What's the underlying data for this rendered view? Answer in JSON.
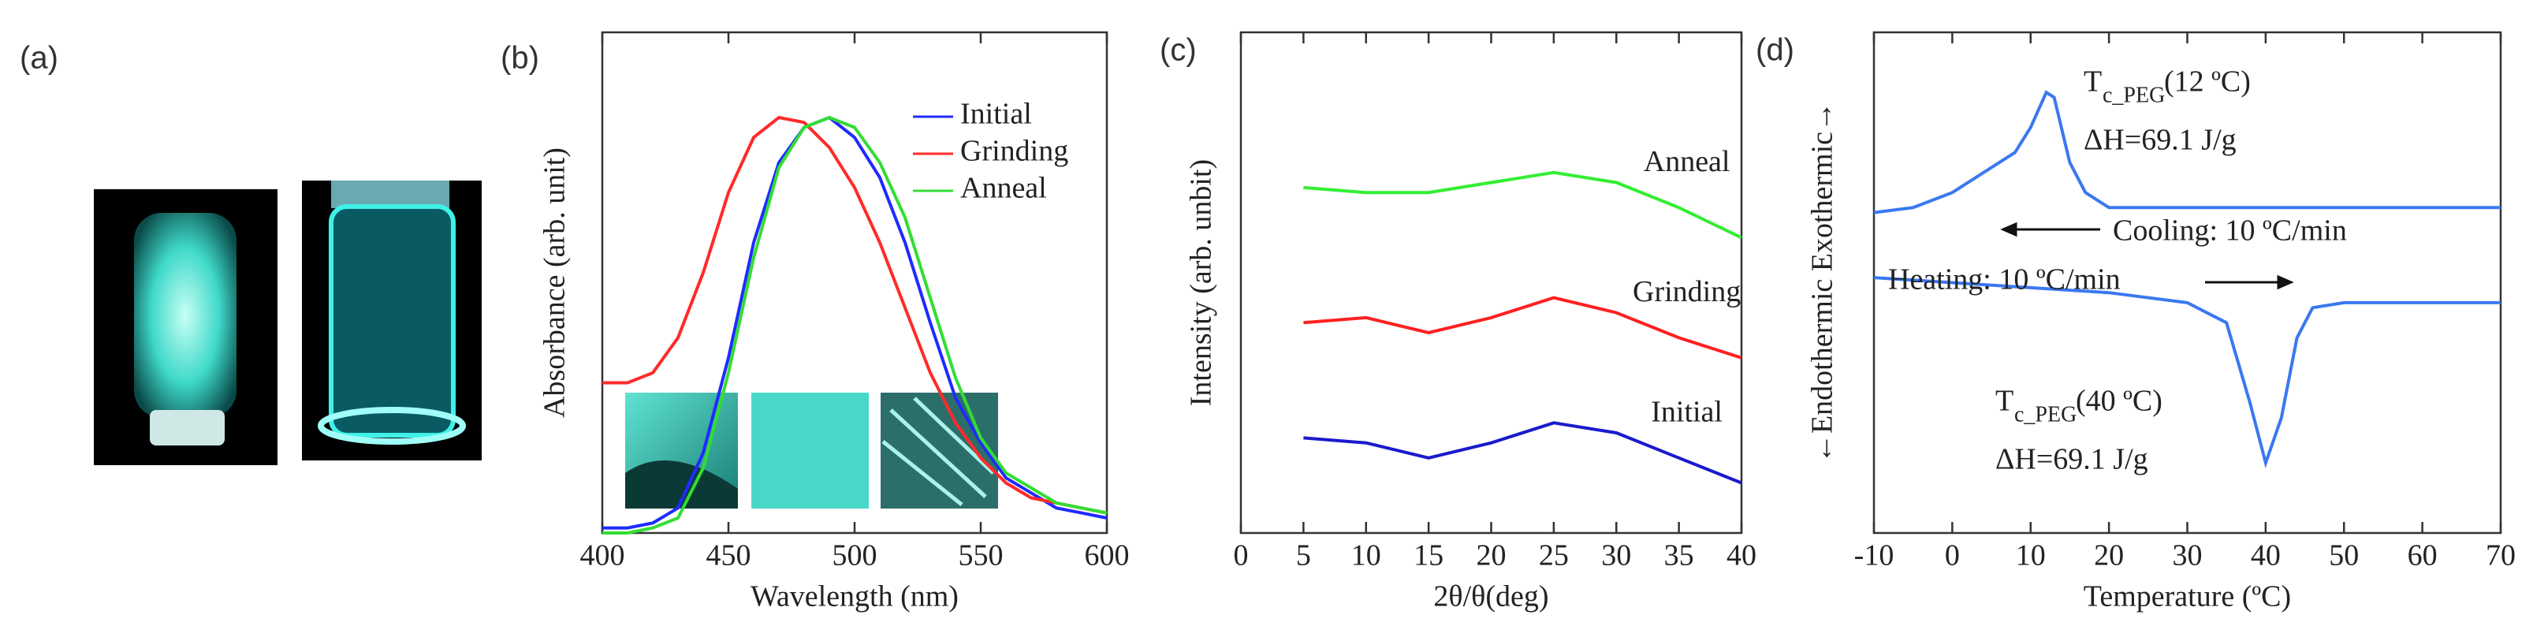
{
  "photo_panel": {
    "label": "(a)"
  },
  "chart_data": [
    {
      "type": "line",
      "label": "(b)",
      "xlabel": "Wavelength (nm)",
      "ylabel": "Absorbance (arb. unit)",
      "xlim": [
        400,
        600
      ],
      "xticks": [
        400,
        450,
        500,
        550,
        600
      ],
      "ylim": [
        0,
        1
      ],
      "legend": "upper right",
      "x": [
        400,
        410,
        420,
        430,
        440,
        450,
        460,
        470,
        480,
        490,
        500,
        510,
        520,
        530,
        540,
        550,
        560,
        570,
        580,
        590,
        600
      ],
      "series": [
        {
          "name": "Initial",
          "color": "#1f2bff",
          "values": [
            0.01,
            0.01,
            0.02,
            0.05,
            0.16,
            0.35,
            0.58,
            0.74,
            0.81,
            0.83,
            0.79,
            0.71,
            0.58,
            0.42,
            0.27,
            0.18,
            0.11,
            0.08,
            0.05,
            0.04,
            0.03
          ]
        },
        {
          "name": "Grinding",
          "color": "#ff2a2a",
          "values": [
            0.3,
            0.3,
            0.32,
            0.39,
            0.52,
            0.68,
            0.79,
            0.83,
            0.82,
            0.77,
            0.69,
            0.58,
            0.45,
            0.32,
            0.22,
            0.15,
            0.1,
            0.07,
            0.06,
            0.05,
            0.04
          ]
        },
        {
          "name": "Anneal",
          "color": "#33dd33",
          "values": [
            0.0,
            0.0,
            0.01,
            0.03,
            0.13,
            0.32,
            0.55,
            0.73,
            0.81,
            0.83,
            0.81,
            0.74,
            0.63,
            0.47,
            0.31,
            0.19,
            0.12,
            0.09,
            0.06,
            0.05,
            0.04
          ]
        }
      ]
    },
    {
      "type": "line",
      "label": "(c)",
      "xlabel": "2θ/θ(deg)",
      "ylabel": "Intensity (arb. unbit)",
      "xlim": [
        0,
        40
      ],
      "xticks": [
        0,
        5,
        10,
        15,
        20,
        25,
        30,
        35,
        40
      ],
      "ylim": [
        0,
        1
      ],
      "legend": "inline",
      "x": [
        5,
        10,
        15,
        20,
        25,
        30,
        35,
        40
      ],
      "series": [
        {
          "name": "Anneal",
          "color": "#33ee33",
          "values": [
            0.69,
            0.68,
            0.68,
            0.7,
            0.72,
            0.7,
            0.65,
            0.59
          ]
        },
        {
          "name": "Grinding",
          "color": "#ff2020",
          "values": [
            0.42,
            0.43,
            0.4,
            0.43,
            0.47,
            0.44,
            0.39,
            0.35
          ]
        },
        {
          "name": "Initial",
          "color": "#1a1acc",
          "values": [
            0.19,
            0.18,
            0.15,
            0.18,
            0.22,
            0.2,
            0.15,
            0.1
          ]
        }
      ]
    },
    {
      "type": "line",
      "label": "(d)",
      "xlabel": "Temperature (ºC)",
      "ylabel": "←Endothermic  Exothermic→",
      "xlim": [
        -10,
        70
      ],
      "xticks": [
        -10,
        0,
        10,
        20,
        30,
        40,
        50,
        60,
        70
      ],
      "ylim": [
        0,
        1
      ],
      "series": [
        {
          "color": "#3a78f0",
          "x": [
            -10,
            -5,
            0,
            5,
            8,
            10,
            12,
            13,
            15,
            17,
            20,
            30,
            40,
            50,
            60,
            70
          ],
          "values": [
            0.64,
            0.65,
            0.68,
            0.73,
            0.76,
            0.81,
            0.88,
            0.87,
            0.74,
            0.68,
            0.65,
            0.65,
            0.65,
            0.65,
            0.65,
            0.65
          ]
        },
        {
          "color": "#3a78f0",
          "x": [
            -10,
            0,
            10,
            20,
            30,
            35,
            38,
            40,
            42,
            44,
            46,
            50,
            60,
            70
          ],
          "values": [
            0.51,
            0.5,
            0.49,
            0.48,
            0.46,
            0.42,
            0.26,
            0.14,
            0.23,
            0.39,
            0.45,
            0.46,
            0.46,
            0.46
          ]
        }
      ],
      "annotations": {
        "cooling": "Cooling: 10 ºC/min",
        "heating": "Heating: 10 ºC/min",
        "peaks": [
          {
            "symbol": "T",
            "subscript": "c_PEG",
            "temp": "(12 ºC)",
            "enthalpy": "ΔH=69.1 J/g"
          },
          {
            "symbol": "T",
            "subscript": "c_PEG",
            "temp": "(40 ºC)",
            "enthalpy": "ΔH=69.1 J/g"
          }
        ]
      }
    }
  ]
}
